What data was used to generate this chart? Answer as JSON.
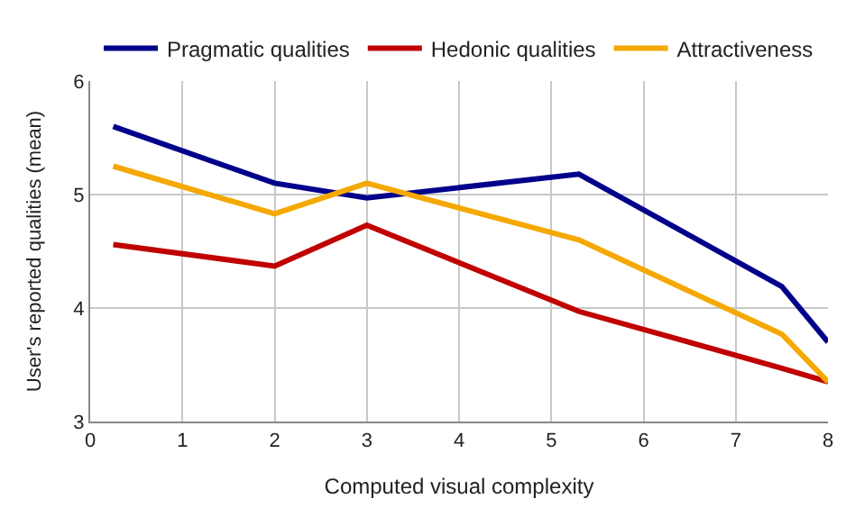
{
  "chart_data": {
    "type": "line",
    "xlabel": "Computed visual complexity",
    "ylabel": "User's reported qualities (mean)",
    "x": [
      0.25,
      2,
      3,
      5.3,
      7.5,
      8
    ],
    "series": [
      {
        "name": "Pragmatic qualities",
        "color": "#00008b",
        "values": [
          5.6,
          5.1,
          4.97,
          5.18,
          4.19,
          3.7
        ]
      },
      {
        "name": "Hedonic qualities",
        "color": "#c00000",
        "values": [
          4.56,
          4.37,
          4.73,
          3.97,
          3.47,
          3.35
        ]
      },
      {
        "name": "Attractiveness",
        "color": "#f5a800",
        "values": [
          5.25,
          4.83,
          5.1,
          4.6,
          3.77,
          3.35
        ]
      }
    ],
    "xlim": [
      0,
      8
    ],
    "xticks": [
      0,
      1,
      2,
      3,
      4,
      5,
      6,
      7,
      8
    ],
    "ylim": [
      3,
      6
    ],
    "yticks": [
      3,
      4,
      5,
      6
    ],
    "grid": true,
    "legend": "top",
    "marker": "none",
    "line_style": "solid"
  }
}
